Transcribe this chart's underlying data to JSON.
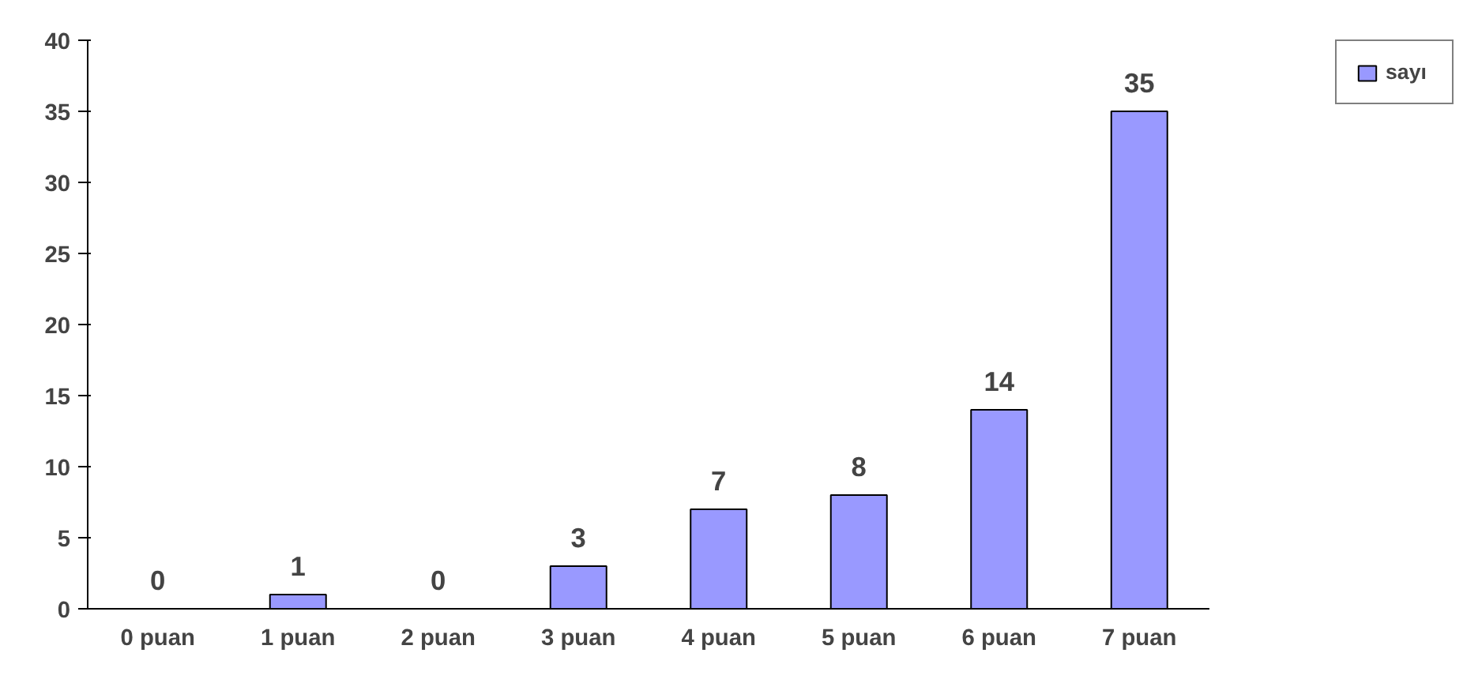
{
  "chart_data": {
    "type": "bar",
    "categories": [
      "0 puan",
      "1 puan",
      "2 puan",
      "3 puan",
      "4 puan",
      "5 puan",
      "6 puan",
      "7 puan"
    ],
    "series": [
      {
        "name": "sayı",
        "color": "#9999ff",
        "values": [
          0,
          1,
          0,
          3,
          7,
          8,
          14,
          35
        ]
      }
    ],
    "ylim": [
      0,
      40
    ],
    "yticks": [
      0,
      5,
      10,
      15,
      20,
      25,
      30,
      35,
      40
    ],
    "data_labels": true,
    "grid": false,
    "legend": "top right"
  }
}
